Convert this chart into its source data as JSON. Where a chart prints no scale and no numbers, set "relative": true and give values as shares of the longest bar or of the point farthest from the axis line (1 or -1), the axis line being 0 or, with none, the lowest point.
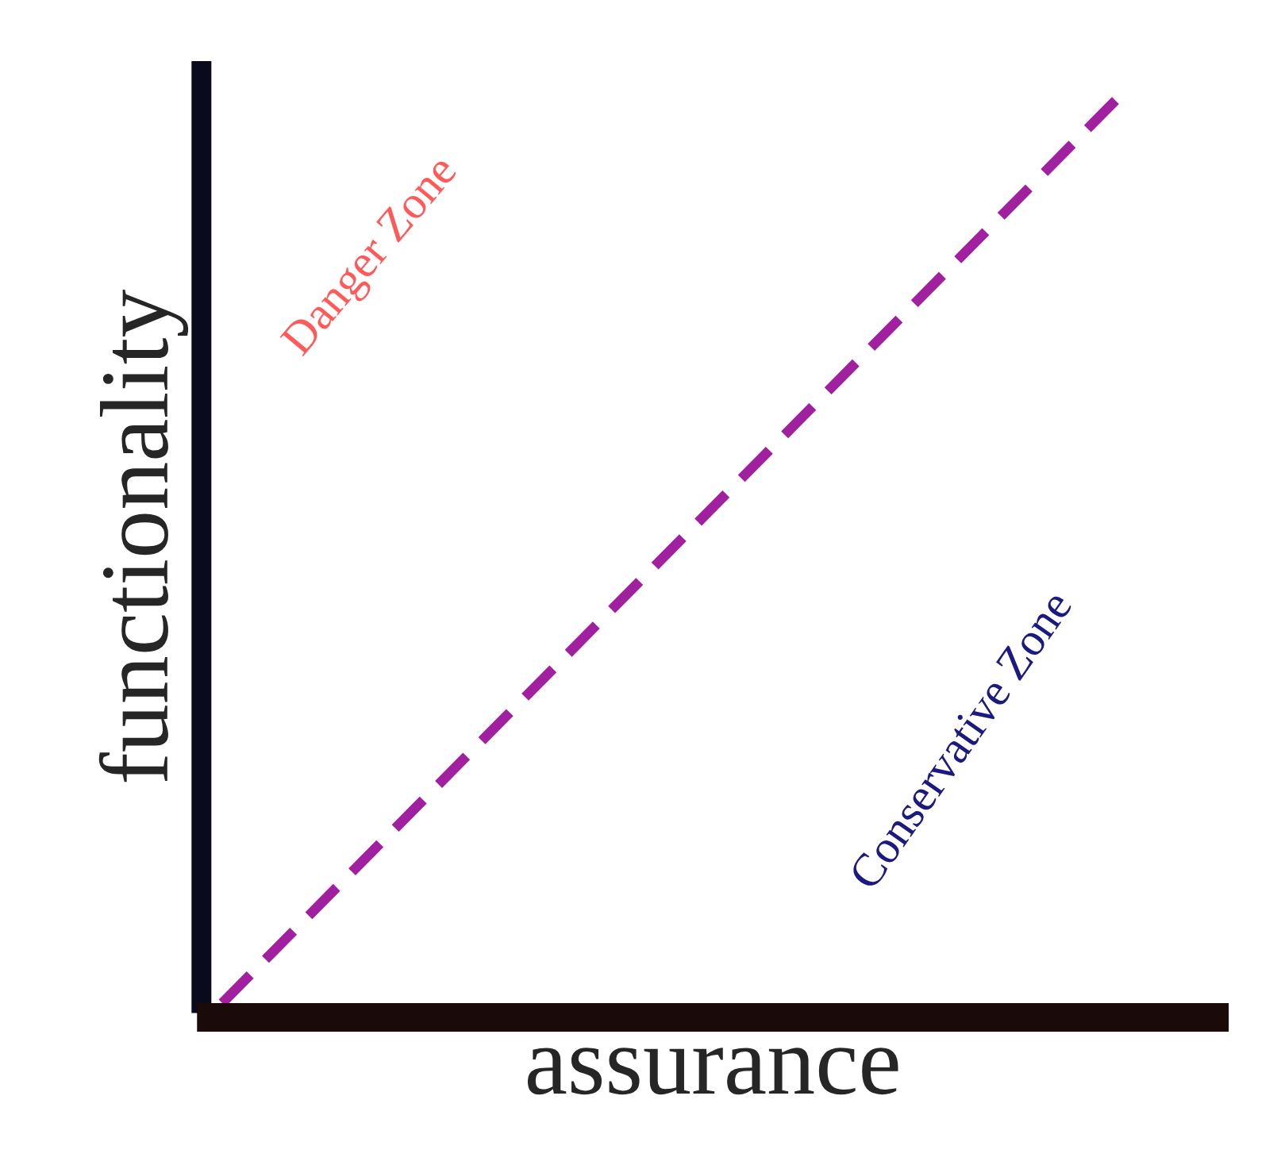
{
  "chart_data": {
    "type": "line",
    "relative": true,
    "xlabel": "assurance",
    "ylabel": "functionality",
    "categories": [
      null,
      null
    ],
    "series": [
      {
        "color": "#a020a0",
        "values": [
          0,
          1
        ],
        "line_style": "dashed"
      }
    ],
    "annotations": [
      "Danger Zone",
      "Conservative Zone"
    ],
    "tick_labels": false
  }
}
